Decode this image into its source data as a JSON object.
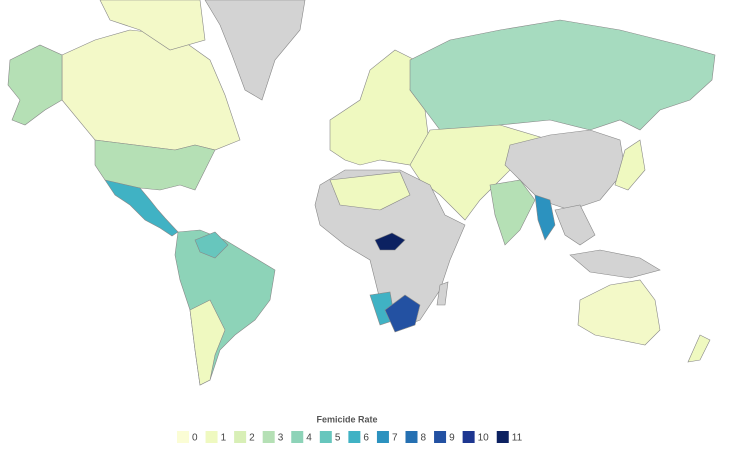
{
  "legend": {
    "title": "Femicide Rate",
    "items": [
      {
        "label": 0,
        "color": "#fbfdd5"
      },
      {
        "label": 1,
        "color": "#eff9c0"
      },
      {
        "label": 2,
        "color": "#d8efb6"
      },
      {
        "label": 3,
        "color": "#b5e0b5"
      },
      {
        "label": 4,
        "color": "#8dd3b8"
      },
      {
        "label": 5,
        "color": "#67c6bd"
      },
      {
        "label": 6,
        "color": "#40b2c4"
      },
      {
        "label": 7,
        "color": "#2c92bf"
      },
      {
        "label": 8,
        "color": "#2570b2"
      },
      {
        "label": 9,
        "color": "#2351a2"
      },
      {
        "label": 10,
        "color": "#1d3690"
      },
      {
        "label": 11,
        "color": "#0c2161"
      }
    ]
  }
}
